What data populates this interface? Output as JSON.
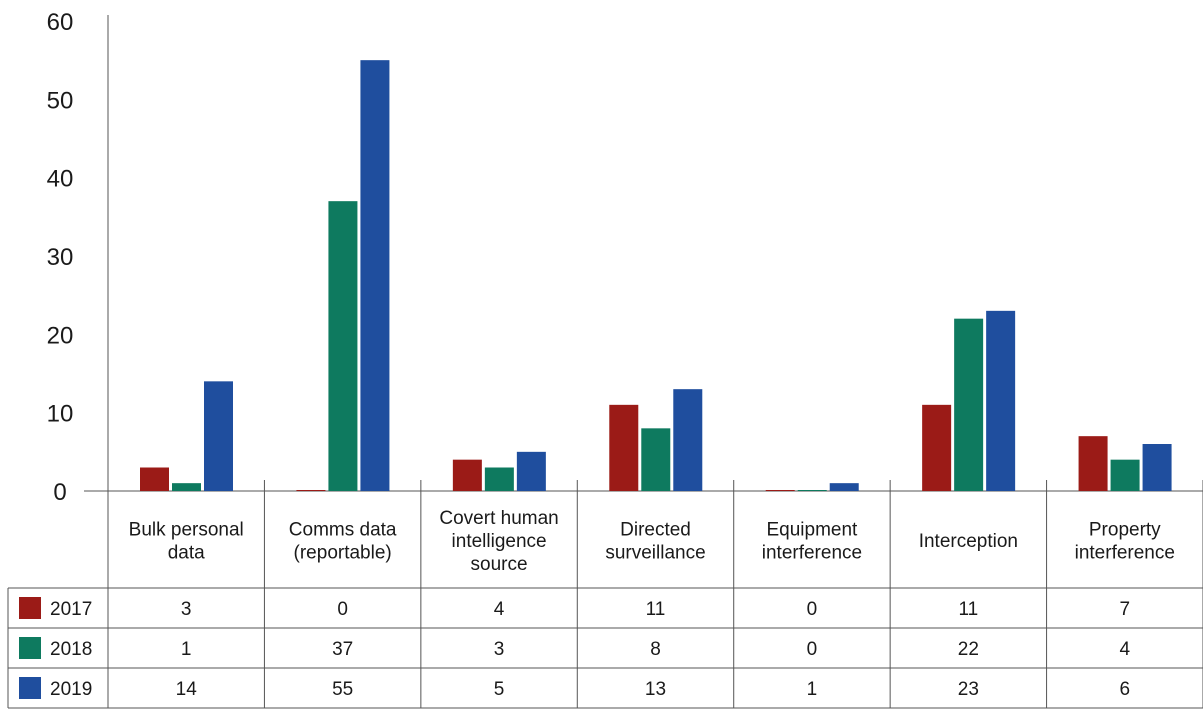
{
  "chart_data": {
    "type": "bar",
    "title": "",
    "xlabel": "",
    "ylabel": "",
    "ylim": [
      0,
      60
    ],
    "yticks": [
      "0",
      "10",
      "20",
      "30",
      "40",
      "50",
      "60"
    ],
    "grid": false,
    "legend": "data table below chart",
    "categories": [
      [
        "Bulk personal",
        "data"
      ],
      [
        "Comms data",
        "(reportable)"
      ],
      [
        "Covert human",
        "intelligence",
        "source"
      ],
      [
        "Directed",
        "surveillance"
      ],
      [
        "Equipment",
        "interference"
      ],
      [
        "Interception"
      ],
      [
        "Property",
        "interference"
      ]
    ],
    "series": [
      {
        "name": "2017",
        "color": "#9b1b17",
        "values": [
          3,
          0,
          4,
          11,
          0,
          11,
          7
        ]
      },
      {
        "name": "2018",
        "color": "#0e7a5f",
        "values": [
          1,
          37,
          3,
          8,
          0,
          22,
          4
        ]
      },
      {
        "name": "2019",
        "color": "#1f4e9e",
        "values": [
          14,
          55,
          5,
          13,
          1,
          23,
          6
        ]
      }
    ]
  }
}
